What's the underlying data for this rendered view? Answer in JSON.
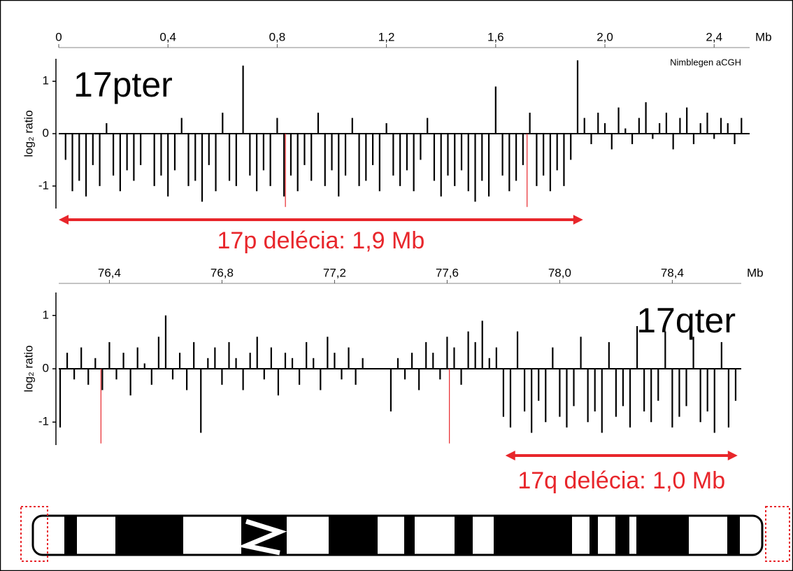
{
  "chart_data": [
    {
      "type": "bar",
      "label": "17pter",
      "source": "Nimblegen aCGH",
      "ylabel": "log₂ ratio",
      "xlabel": "Mb",
      "xlim": [
        0,
        2.53
      ],
      "xticks": [
        0,
        {
          "value": 0.4,
          "label": "0,4"
        },
        {
          "value": 0.8,
          "label": "0,8"
        },
        {
          "value": 1.2,
          "label": "1,2"
        },
        {
          "value": 1.6,
          "label": "1,6"
        },
        {
          "value": 2.0,
          "label": "2,0"
        },
        {
          "value": 2.4,
          "label": "2,4"
        }
      ],
      "ylim": [
        -1.43,
        1.43
      ],
      "yticks": [
        -1,
        0,
        1
      ],
      "deletion": {
        "label": "17p delécia: 1,9 Mb",
        "range": [
          0,
          1.92
        ],
        "color": "#e8262b"
      },
      "series": [
        {
          "color": "#000000",
          "x": [
            0.025,
            0.05,
            0.075,
            0.1,
            0.125,
            0.15,
            0.175,
            0.2,
            0.225,
            0.25,
            0.275,
            0.3,
            0.35,
            0.375,
            0.4,
            0.425,
            0.45,
            0.475,
            0.5,
            0.525,
            0.55,
            0.575,
            0.6,
            0.625,
            0.65,
            0.675,
            0.7,
            0.725,
            0.75,
            0.775,
            0.8,
            0.825,
            0.85,
            0.875,
            0.9,
            0.925,
            0.95,
            0.975,
            1.0,
            1.025,
            1.05,
            1.075,
            1.1,
            1.125,
            1.15,
            1.175,
            1.2,
            1.225,
            1.25,
            1.275,
            1.3,
            1.325,
            1.35,
            1.375,
            1.4,
            1.425,
            1.45,
            1.475,
            1.5,
            1.525,
            1.55,
            1.575,
            1.6,
            1.625,
            1.65,
            1.675,
            1.7,
            1.725,
            1.75,
            1.775,
            1.8,
            1.825,
            1.85,
            1.875,
            1.9,
            1.925,
            1.95,
            1.975,
            2.0,
            2.025,
            2.05,
            2.075,
            2.1,
            2.125,
            2.15,
            2.175,
            2.2,
            2.225,
            2.25,
            2.275,
            2.3,
            2.325,
            2.35,
            2.375,
            2.4,
            2.425,
            2.45,
            2.475,
            2.5
          ],
          "values": [
            -0.5,
            -1.1,
            -0.9,
            -1.2,
            -0.6,
            -1.0,
            0.2,
            -0.8,
            -1.1,
            -0.7,
            -0.9,
            -0.6,
            -1.0,
            -0.8,
            -1.2,
            -0.7,
            0.3,
            -1.0,
            -0.9,
            -1.3,
            -0.6,
            -1.1,
            0.4,
            -0.9,
            -1.0,
            1.3,
            -0.8,
            -1.1,
            -0.7,
            -1.0,
            0.3,
            -1.2,
            -0.8,
            -1.1,
            -0.6,
            -0.9,
            0.4,
            -1.0,
            -0.7,
            -1.2,
            -0.8,
            0.3,
            -1.0,
            -0.9,
            -0.6,
            -1.1,
            0.2,
            -0.8,
            -1.0,
            -0.7,
            -1.1,
            -0.5,
            0.3,
            -0.9,
            -1.2,
            -0.8,
            -1.0,
            -0.7,
            -1.1,
            -1.3,
            -0.9,
            -1.2,
            0.9,
            -0.8,
            -1.1,
            -0.9,
            -0.6,
            0.4,
            -1.0,
            -0.8,
            -1.1,
            -0.7,
            -1.0,
            -0.5,
            1.4,
            0.3,
            -0.2,
            0.4,
            0.2,
            -0.3,
            0.5,
            0.1,
            -0.2,
            0.3,
            0.6,
            -0.1,
            0.2,
            0.4,
            -0.3,
            0.3,
            0.5,
            -0.2,
            0.2,
            0.4,
            -0.1,
            0.3,
            0.2,
            -0.2,
            0.3
          ]
        },
        {
          "color": "#e8262b",
          "x": [
            0.83,
            1.715
          ],
          "values": [
            -1.4,
            -1.4
          ]
        }
      ]
    },
    {
      "type": "bar",
      "label": "17qter",
      "ylabel": "log₂ ratio",
      "xlabel": "Mb",
      "xlim": [
        76.22,
        78.645
      ],
      "xticks": [
        {
          "value": 76.4,
          "label": "76,4"
        },
        {
          "value": 76.8,
          "label": "76,8"
        },
        {
          "value": 77.2,
          "label": "77,2"
        },
        {
          "value": 77.6,
          "label": "77,6"
        },
        {
          "value": 78.0,
          "label": "78,0"
        },
        {
          "value": 78.4,
          "label": "78,4"
        }
      ],
      "ylim": [
        -1.43,
        1.43
      ],
      "yticks": [
        -1,
        0,
        1
      ],
      "deletion": {
        "label": "17q delécia: 1,0 Mb",
        "range": [
          77.807,
          78.632
        ],
        "color": "#e8262b"
      },
      "series": [
        {
          "color": "#000000",
          "x": [
            76.225,
            76.25,
            76.275,
            76.3,
            76.325,
            76.35,
            76.375,
            76.4,
            76.425,
            76.45,
            76.475,
            76.5,
            76.525,
            76.55,
            76.575,
            76.6,
            76.625,
            76.65,
            76.675,
            76.7,
            76.725,
            76.75,
            76.775,
            76.8,
            76.825,
            76.85,
            76.875,
            76.9,
            76.925,
            76.95,
            76.975,
            77.0,
            77.025,
            77.05,
            77.075,
            77.1,
            77.125,
            77.15,
            77.175,
            77.2,
            77.225,
            77.25,
            77.275,
            77.3,
            77.4,
            77.425,
            77.45,
            77.475,
            77.5,
            77.525,
            77.55,
            77.575,
            77.6,
            77.625,
            77.65,
            77.675,
            77.7,
            77.725,
            77.75,
            77.775,
            77.8,
            77.825,
            77.85,
            77.875,
            77.9,
            77.925,
            77.95,
            77.975,
            78.0,
            78.025,
            78.05,
            78.075,
            78.1,
            78.125,
            78.15,
            78.175,
            78.2,
            78.225,
            78.25,
            78.275,
            78.3,
            78.325,
            78.35,
            78.375,
            78.4,
            78.425,
            78.45,
            78.475,
            78.5,
            78.525,
            78.55,
            78.575,
            78.6,
            78.625
          ],
          "values": [
            -1.1,
            0.3,
            -0.2,
            0.4,
            -0.3,
            0.2,
            -0.4,
            0.5,
            -0.2,
            0.3,
            -0.5,
            0.4,
            0.1,
            -0.3,
            0.6,
            1.0,
            -0.2,
            0.3,
            -0.4,
            0.5,
            -1.2,
            0.2,
            0.4,
            -0.3,
            0.5,
            0.2,
            -0.4,
            0.3,
            0.6,
            -0.2,
            0.4,
            -0.5,
            0.3,
            0.2,
            -0.3,
            0.5,
            0.2,
            -0.4,
            0.6,
            0.3,
            -0.2,
            0.4,
            -0.3,
            0.2,
            -0.8,
            0.2,
            -0.2,
            0.3,
            -0.4,
            0.5,
            0.3,
            -0.2,
            0.6,
            0.4,
            -0.3,
            0.7,
            0.5,
            0.9,
            0.2,
            0.4,
            -0.9,
            -1.1,
            0.7,
            -0.8,
            -1.2,
            -0.6,
            -1.0,
            0.4,
            -0.9,
            -1.1,
            -0.7,
            0.6,
            -1.0,
            -0.8,
            -1.2,
            0.5,
            -0.9,
            -0.7,
            -1.1,
            0.8,
            -0.8,
            -1.0,
            -0.6,
            0.7,
            -1.1,
            -0.9,
            -0.7,
            0.6,
            -1.0,
            -0.8,
            -1.2,
            0.5,
            -1.1,
            -0.6
          ]
        },
        {
          "color": "#e8262b",
          "x": [
            76.37,
            77.608
          ],
          "values": [
            -1.4,
            -1.4
          ]
        }
      ]
    }
  ]
}
